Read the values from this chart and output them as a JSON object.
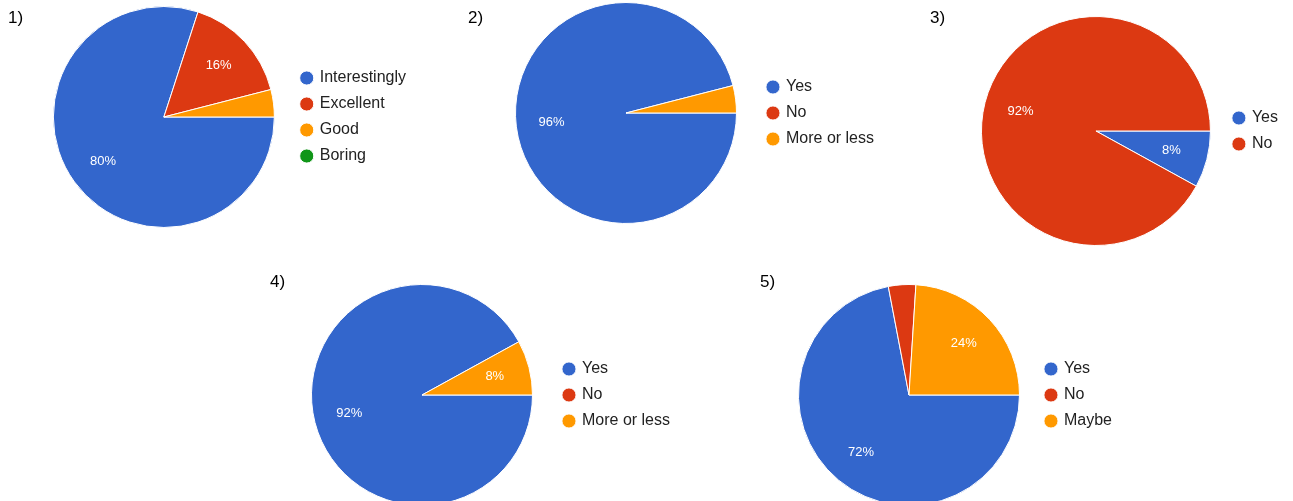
{
  "chart_data": [
    {
      "type": "pie",
      "title": "1)",
      "categories": [
        "Interestingly",
        "Excellent",
        "Good",
        "Boring"
      ],
      "values": [
        80,
        16,
        4,
        0
      ],
      "colors": [
        "#3366cc",
        "#dc3912",
        "#ff9900",
        "#109618"
      ],
      "value_labels": [
        "80%",
        "16%",
        null,
        null
      ],
      "legend": "right"
    },
    {
      "type": "pie",
      "title": "2)",
      "categories": [
        "Yes",
        "No",
        "More or less"
      ],
      "values": [
        96,
        0,
        4
      ],
      "colors": [
        "#3366cc",
        "#dc3912",
        "#ff9900"
      ],
      "value_labels": [
        "96%",
        null,
        null
      ],
      "legend": "right"
    },
    {
      "type": "pie",
      "title": "3)",
      "categories": [
        "Yes",
        "No"
      ],
      "values": [
        8,
        92
      ],
      "colors": [
        "#3366cc",
        "#dc3912"
      ],
      "value_labels": [
        "8%",
        "92%"
      ],
      "legend": "right"
    },
    {
      "type": "pie",
      "title": "4)",
      "categories": [
        "Yes",
        "No",
        "More or less"
      ],
      "values": [
        92,
        0,
        8
      ],
      "colors": [
        "#3366cc",
        "#dc3912",
        "#ff9900"
      ],
      "value_labels": [
        "92%",
        null,
        "8%"
      ],
      "legend": "right"
    },
    {
      "type": "pie",
      "title": "5)",
      "categories": [
        "Yes",
        "No",
        "Maybe"
      ],
      "values": [
        72,
        4,
        24
      ],
      "colors": [
        "#3366cc",
        "#dc3912",
        "#ff9900"
      ],
      "value_labels": [
        "72%",
        null,
        "24%"
      ],
      "legend": "right"
    }
  ]
}
